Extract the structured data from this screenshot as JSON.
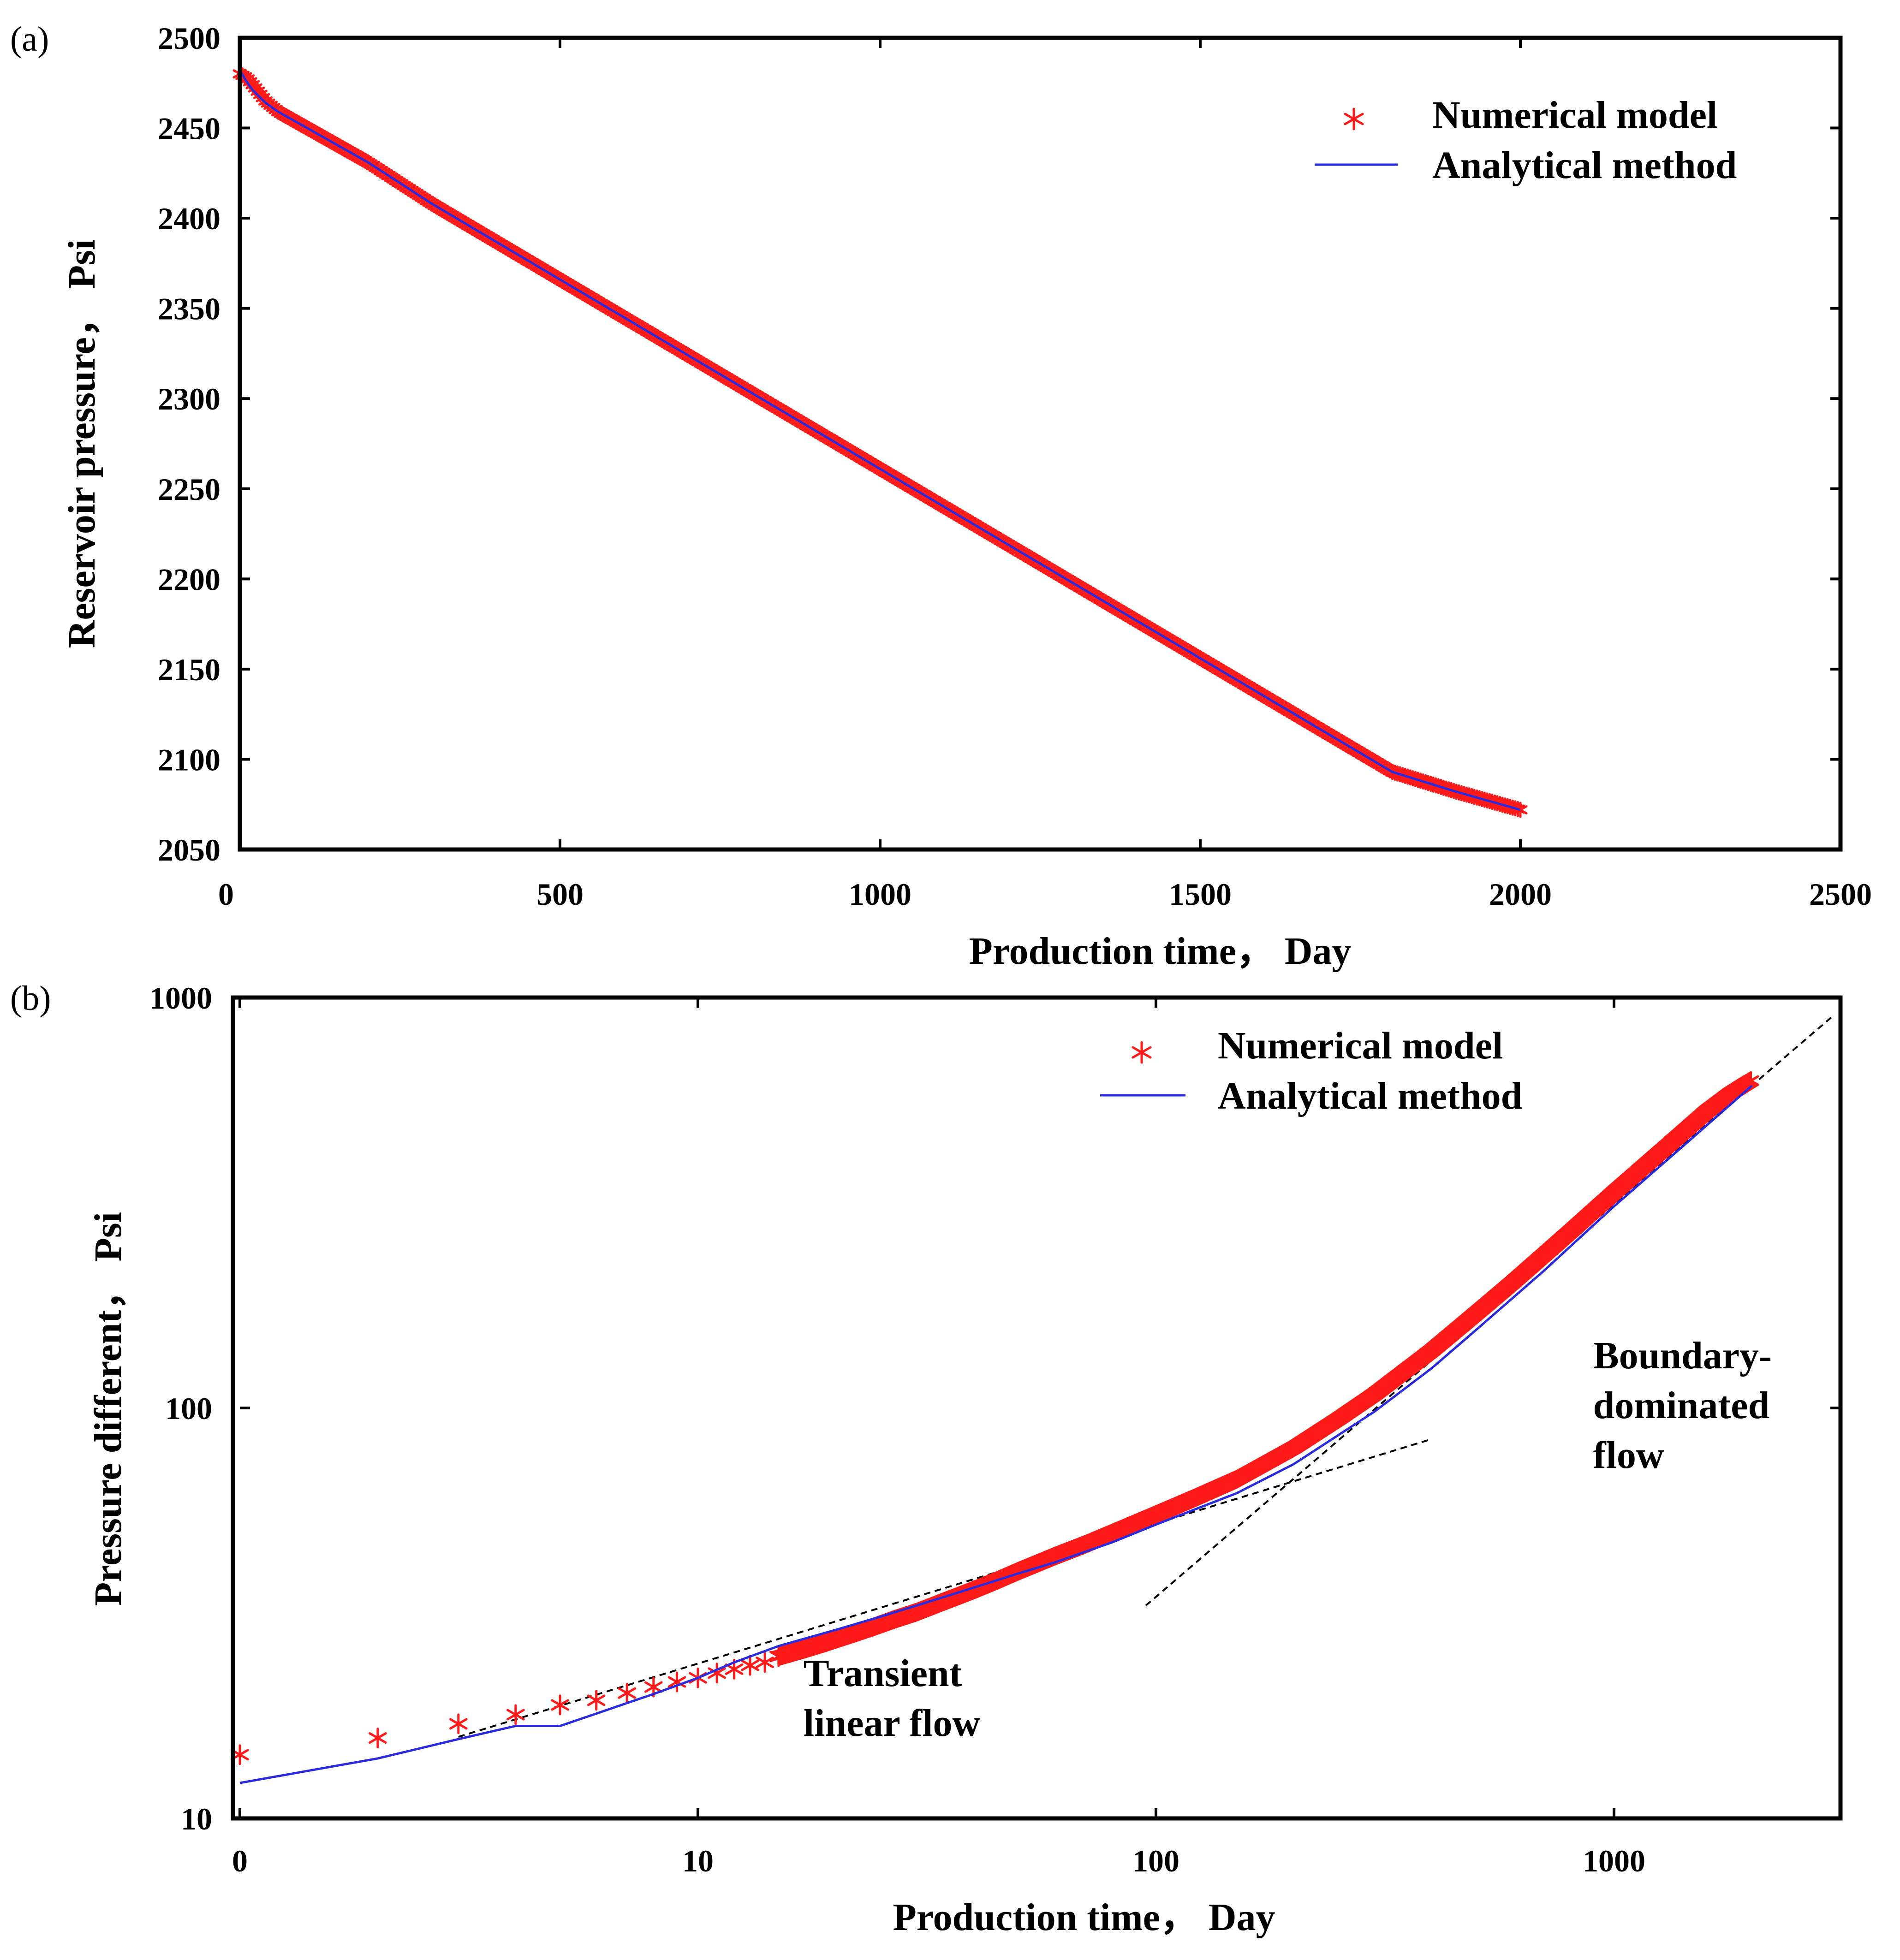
{
  "colors": {
    "numerical": "#ff1a1a",
    "analytical": "#2b2bdc",
    "guide": "#000000"
  },
  "chart_data": [
    {
      "panel_label": "(a)",
      "type": "line",
      "xlabel": "Production time， Day",
      "ylabel": "Reservoir pressure， Psi",
      "xlim": [
        0,
        2500
      ],
      "ylim": [
        2050,
        2500
      ],
      "xticks": [
        "0",
        "500",
        "1000",
        "1500",
        "2000",
        "2500"
      ],
      "yticks": [
        "2050",
        "2100",
        "2150",
        "2200",
        "2250",
        "2300",
        "2350",
        "2400",
        "2450",
        "2500"
      ],
      "legend": {
        "position": "top-right",
        "entries": [
          "Numerical model",
          "Analytical method"
        ]
      },
      "series": [
        {
          "name": "Numerical model",
          "marker": "asterisk",
          "x": [
            0,
            10,
            20,
            40,
            60,
            80,
            100,
            150,
            200,
            300,
            400,
            500,
            600,
            700,
            800,
            900,
            1000,
            1100,
            1200,
            1300,
            1400,
            1500,
            1600,
            1700,
            1800,
            1900,
            2000
          ],
          "y": [
            2480,
            2478,
            2474,
            2465,
            2459,
            2455,
            2451,
            2441,
            2431,
            2408,
            2387,
            2366,
            2345,
            2324,
            2303,
            2282,
            2261,
            2240,
            2219,
            2198,
            2177,
            2156,
            2135,
            2114,
            2093,
            2082,
            2072
          ]
        },
        {
          "name": "Analytical method",
          "marker": "line",
          "x": [
            0,
            10,
            20,
            40,
            60,
            80,
            100,
            150,
            200,
            300,
            400,
            500,
            600,
            700,
            800,
            900,
            1000,
            1100,
            1200,
            1300,
            1400,
            1500,
            1600,
            1700,
            1800,
            1900,
            2000
          ],
          "y": [
            2482,
            2476,
            2471,
            2464,
            2459,
            2455,
            2451,
            2441,
            2431,
            2408,
            2387,
            2366,
            2345,
            2324,
            2303,
            2282,
            2261,
            2240,
            2219,
            2198,
            2177,
            2156,
            2135,
            2114,
            2093,
            2082,
            2072
          ]
        }
      ]
    },
    {
      "panel_label": "(b)",
      "type": "scatter",
      "xscale": "log",
      "yscale": "log",
      "xlabel": "Production time， Day",
      "ylabel": "Pressure different， Psi",
      "xlim": [
        1,
        3500
      ],
      "ylim": [
        10,
        1000
      ],
      "xticks": [
        {
          "value": 1,
          "label": "0"
        },
        {
          "value": 10,
          "label": "10"
        },
        {
          "value": 100,
          "label": "100"
        },
        {
          "value": 1000,
          "label": "1000"
        }
      ],
      "yticks": [
        {
          "value": 10,
          "label": "10"
        },
        {
          "value": 100,
          "label": "100"
        },
        {
          "value": 1000,
          "label": "1000"
        }
      ],
      "legend": {
        "position": "top-right",
        "entries": [
          "Numerical model",
          "Analytical method"
        ]
      },
      "annotations": [
        {
          "text": [
            "Transient",
            "linear flow"
          ],
          "x": 17,
          "y": 21
        },
        {
          "text": [
            "Boundary-",
            "dominated",
            "flow"
          ],
          "x": 900,
          "y": 125
        }
      ],
      "guide_lines": [
        {
          "from": [
            3,
            15.8
          ],
          "to": [
            400,
            84
          ]
        },
        {
          "from": [
            95,
            33
          ],
          "to": [
            3000,
            900
          ]
        }
      ],
      "series": [
        {
          "name": "Numerical model",
          "marker": "asterisk",
          "x": [
            1,
            2,
            3,
            4,
            5,
            6,
            7,
            8,
            9,
            10,
            11,
            12,
            13,
            14,
            15,
            17,
            19,
            21,
            24,
            27,
            30,
            35,
            40,
            45,
            50,
            60,
            70,
            80,
            100,
            120,
            150,
            200,
            250,
            300,
            400,
            500,
            600,
            700,
            800,
            1000,
            1200,
            1400,
            1600,
            1800,
            2000
          ],
          "y": [
            14.3,
            15.7,
            17.0,
            17.9,
            18.9,
            19.4,
            20.2,
            20.9,
            21.5,
            22.0,
            22.6,
            23.1,
            23.6,
            24.0,
            24.8,
            25.8,
            26.8,
            27.8,
            29.2,
            30.6,
            31.8,
            34.0,
            36.0,
            38.0,
            40.0,
            43.5,
            46.5,
            49.5,
            55.0,
            60.0,
            67.0,
            80.0,
            94.0,
            108.0,
            138.0,
            170.0,
            202.0,
            235.0,
            268.0,
            335.0,
            400.0,
            465.0,
            530.0,
            585.0,
            630.0
          ]
        },
        {
          "name": "Analytical method",
          "marker": "line",
          "x": [
            1,
            2,
            3,
            4,
            5,
            6,
            7,
            8,
            10,
            12,
            15,
            20,
            25,
            30,
            40,
            50,
            60,
            80,
            100,
            150,
            200,
            300,
            400,
            500,
            700,
            1000,
            1500,
            2000
          ],
          "y": [
            12.2,
            14.0,
            15.6,
            16.8,
            16.8,
            18.0,
            19.1,
            20.1,
            22.0,
            24.0,
            26.3,
            28.8,
            31.0,
            33.0,
            36.5,
            39.5,
            42.0,
            47.0,
            52.0,
            62.0,
            73.0,
            98.0,
            125.0,
            155.0,
            215.0,
            310.0,
            460.0,
            610.0
          ]
        }
      ]
    }
  ]
}
